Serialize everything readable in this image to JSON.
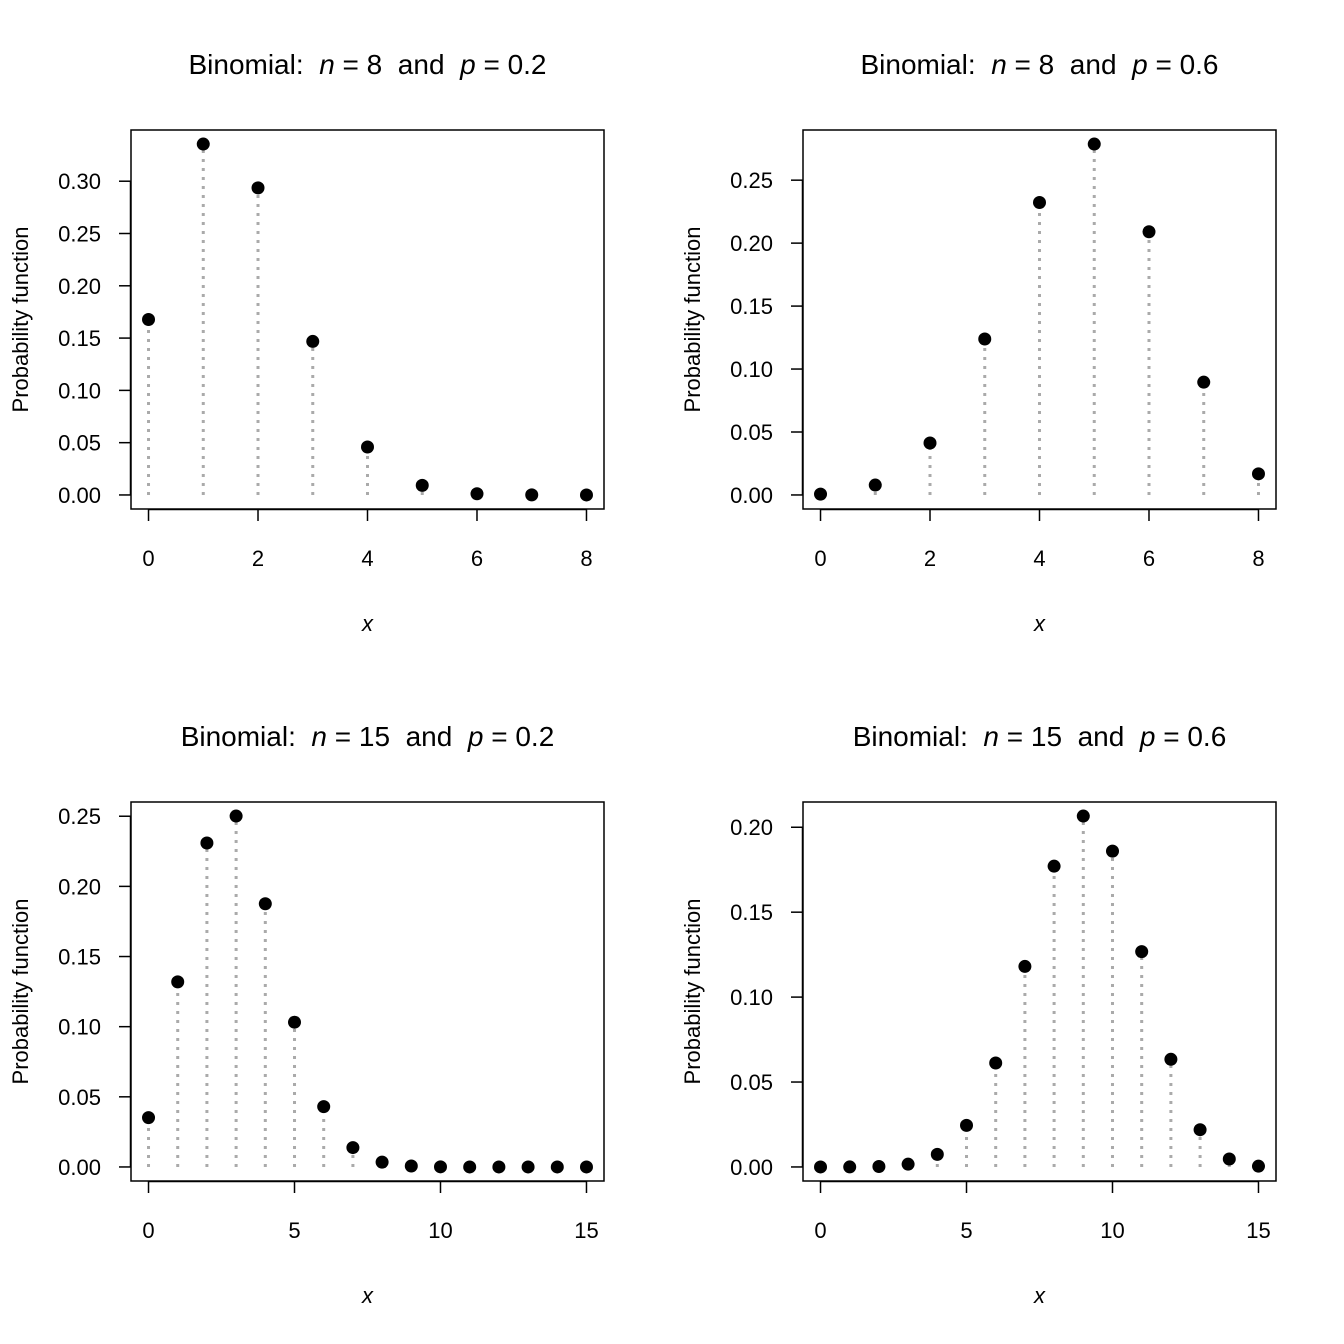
{
  "chart_data": [
    {
      "type": "scatter",
      "style": "lollipop",
      "title_segments": [
        {
          "t": "Binomial:  "
        },
        {
          "t": "n",
          "italic": true
        },
        {
          "t": " = 8  and  "
        },
        {
          "t": "p",
          "italic": true
        },
        {
          "t": " = 0.2"
        }
      ],
      "xlabel": "x",
      "ylabel": "Probability function",
      "x": [
        0,
        1,
        2,
        3,
        4,
        5,
        6,
        7,
        8
      ],
      "y": [
        0.167772,
        0.335544,
        0.293601,
        0.146801,
        0.045875,
        0.009175,
        0.001147,
        8.2e-05,
        3e-06
      ],
      "xlim": [
        0,
        8
      ],
      "xticks": [
        0,
        2,
        4,
        6,
        8
      ],
      "yticks": [
        0,
        0.05,
        0.1,
        0.15,
        0.2,
        0.25,
        0.3
      ],
      "ytick_labels": [
        "0.00",
        "0.05",
        "0.10",
        "0.15",
        "0.20",
        "0.25",
        "0.30"
      ]
    },
    {
      "type": "scatter",
      "style": "lollipop",
      "title_segments": [
        {
          "t": "Binomial:  "
        },
        {
          "t": "n",
          "italic": true
        },
        {
          "t": " = 8  and  "
        },
        {
          "t": "p",
          "italic": true
        },
        {
          "t": " = 0.6"
        }
      ],
      "xlabel": "x",
      "ylabel": "Probability function",
      "x": [
        0,
        1,
        2,
        3,
        4,
        5,
        6,
        7,
        8
      ],
      "y": [
        0.000655,
        0.007864,
        0.041288,
        0.123863,
        0.232243,
        0.278692,
        0.209019,
        0.08958,
        0.016796
      ],
      "xlim": [
        0,
        8
      ],
      "xticks": [
        0,
        2,
        4,
        6,
        8
      ],
      "yticks": [
        0,
        0.05,
        0.1,
        0.15,
        0.2,
        0.25
      ],
      "ytick_labels": [
        "0.00",
        "0.05",
        "0.10",
        "0.15",
        "0.20",
        "0.25"
      ]
    },
    {
      "type": "scatter",
      "style": "lollipop",
      "title_segments": [
        {
          "t": "Binomial:  "
        },
        {
          "t": "n",
          "italic": true
        },
        {
          "t": " = 15  and  "
        },
        {
          "t": "p",
          "italic": true
        },
        {
          "t": " = 0.2"
        }
      ],
      "xlabel": "x",
      "ylabel": "Probability function",
      "x": [
        0,
        1,
        2,
        3,
        4,
        5,
        6,
        7,
        8,
        9,
        10,
        11,
        12,
        13,
        14,
        15
      ],
      "y": [
        0.035184,
        0.131941,
        0.230897,
        0.250139,
        0.187604,
        0.103182,
        0.042993,
        0.013819,
        0.003455,
        0.000672,
        0.000101,
        1.1e-05,
        1e-06,
        0.0,
        0.0,
        0.0
      ],
      "xlim": [
        0,
        15
      ],
      "xticks": [
        0,
        5,
        10,
        15
      ],
      "yticks": [
        0,
        0.05,
        0.1,
        0.15,
        0.2,
        0.25
      ],
      "ytick_labels": [
        "0.00",
        "0.05",
        "0.10",
        "0.15",
        "0.20",
        "0.25"
      ]
    },
    {
      "type": "scatter",
      "style": "lollipop",
      "title_segments": [
        {
          "t": "Binomial:  "
        },
        {
          "t": "n",
          "italic": true
        },
        {
          "t": " = 15  and  "
        },
        {
          "t": "p",
          "italic": true
        },
        {
          "t": " = 0.6"
        }
      ],
      "xlabel": "x",
      "ylabel": "Probability function",
      "x": [
        0,
        1,
        2,
        3,
        4,
        5,
        6,
        7,
        8,
        9,
        10,
        11,
        12,
        13,
        14,
        15
      ],
      "y": [
        1e-06,
        2.4e-05,
        0.000254,
        0.001649,
        0.00742,
        0.024486,
        0.061214,
        0.118056,
        0.177084,
        0.206598,
        0.185938,
        0.126776,
        0.063388,
        0.021942,
        0.004702,
        0.00047
      ],
      "xlim": [
        0,
        15
      ],
      "xticks": [
        0,
        5,
        10,
        15
      ],
      "yticks": [
        0,
        0.05,
        0.1,
        0.15,
        0.2
      ],
      "ytick_labels": [
        "0.00",
        "0.05",
        "0.10",
        "0.15",
        "0.20"
      ]
    }
  ],
  "colors": {
    "points": "#000000",
    "stems": "#aaaaaa",
    "axes": "#000000"
  }
}
